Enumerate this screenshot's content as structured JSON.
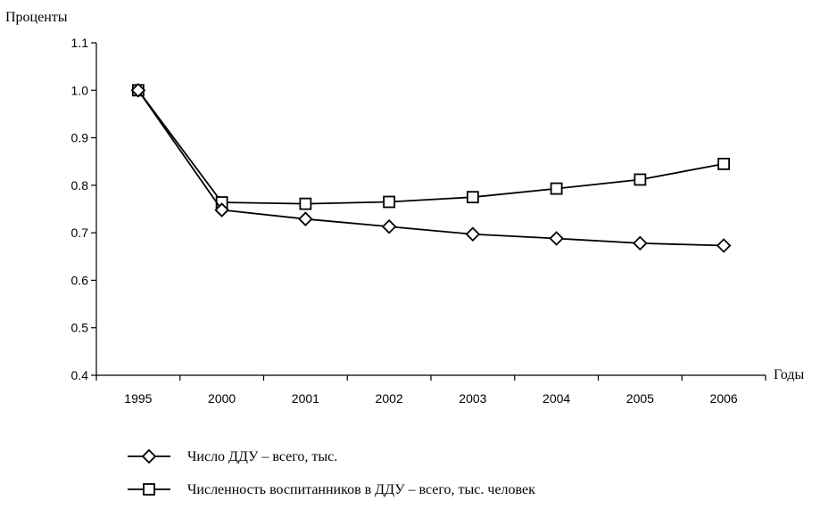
{
  "chart_data": {
    "type": "line",
    "ylabel": "Проценты",
    "xlabel": "Годы",
    "categories": [
      "1995",
      "2000",
      "2001",
      "2002",
      "2003",
      "2004",
      "2005",
      "2006"
    ],
    "ylim": [
      0.4,
      1.1
    ],
    "yticks": [
      "0.4",
      "0.5",
      "0.6",
      "0.7",
      "0.8",
      "0.9",
      "1.0",
      "1.1"
    ],
    "grid": false,
    "legend_position": "bottom",
    "series": [
      {
        "name": "Число ДДУ – всего, тыс.",
        "marker": "diamond",
        "values": [
          1.0,
          0.748,
          0.729,
          0.713,
          0.697,
          0.688,
          0.678,
          0.673
        ]
      },
      {
        "name": "Численность воспитанников в ДДУ – всего, тыс. человек",
        "marker": "square",
        "values": [
          1.0,
          0.764,
          0.761,
          0.765,
          0.775,
          0.793,
          0.812,
          0.845
        ]
      }
    ],
    "colors": {
      "line": "#000000",
      "marker_fill": "#ffffff"
    }
  }
}
